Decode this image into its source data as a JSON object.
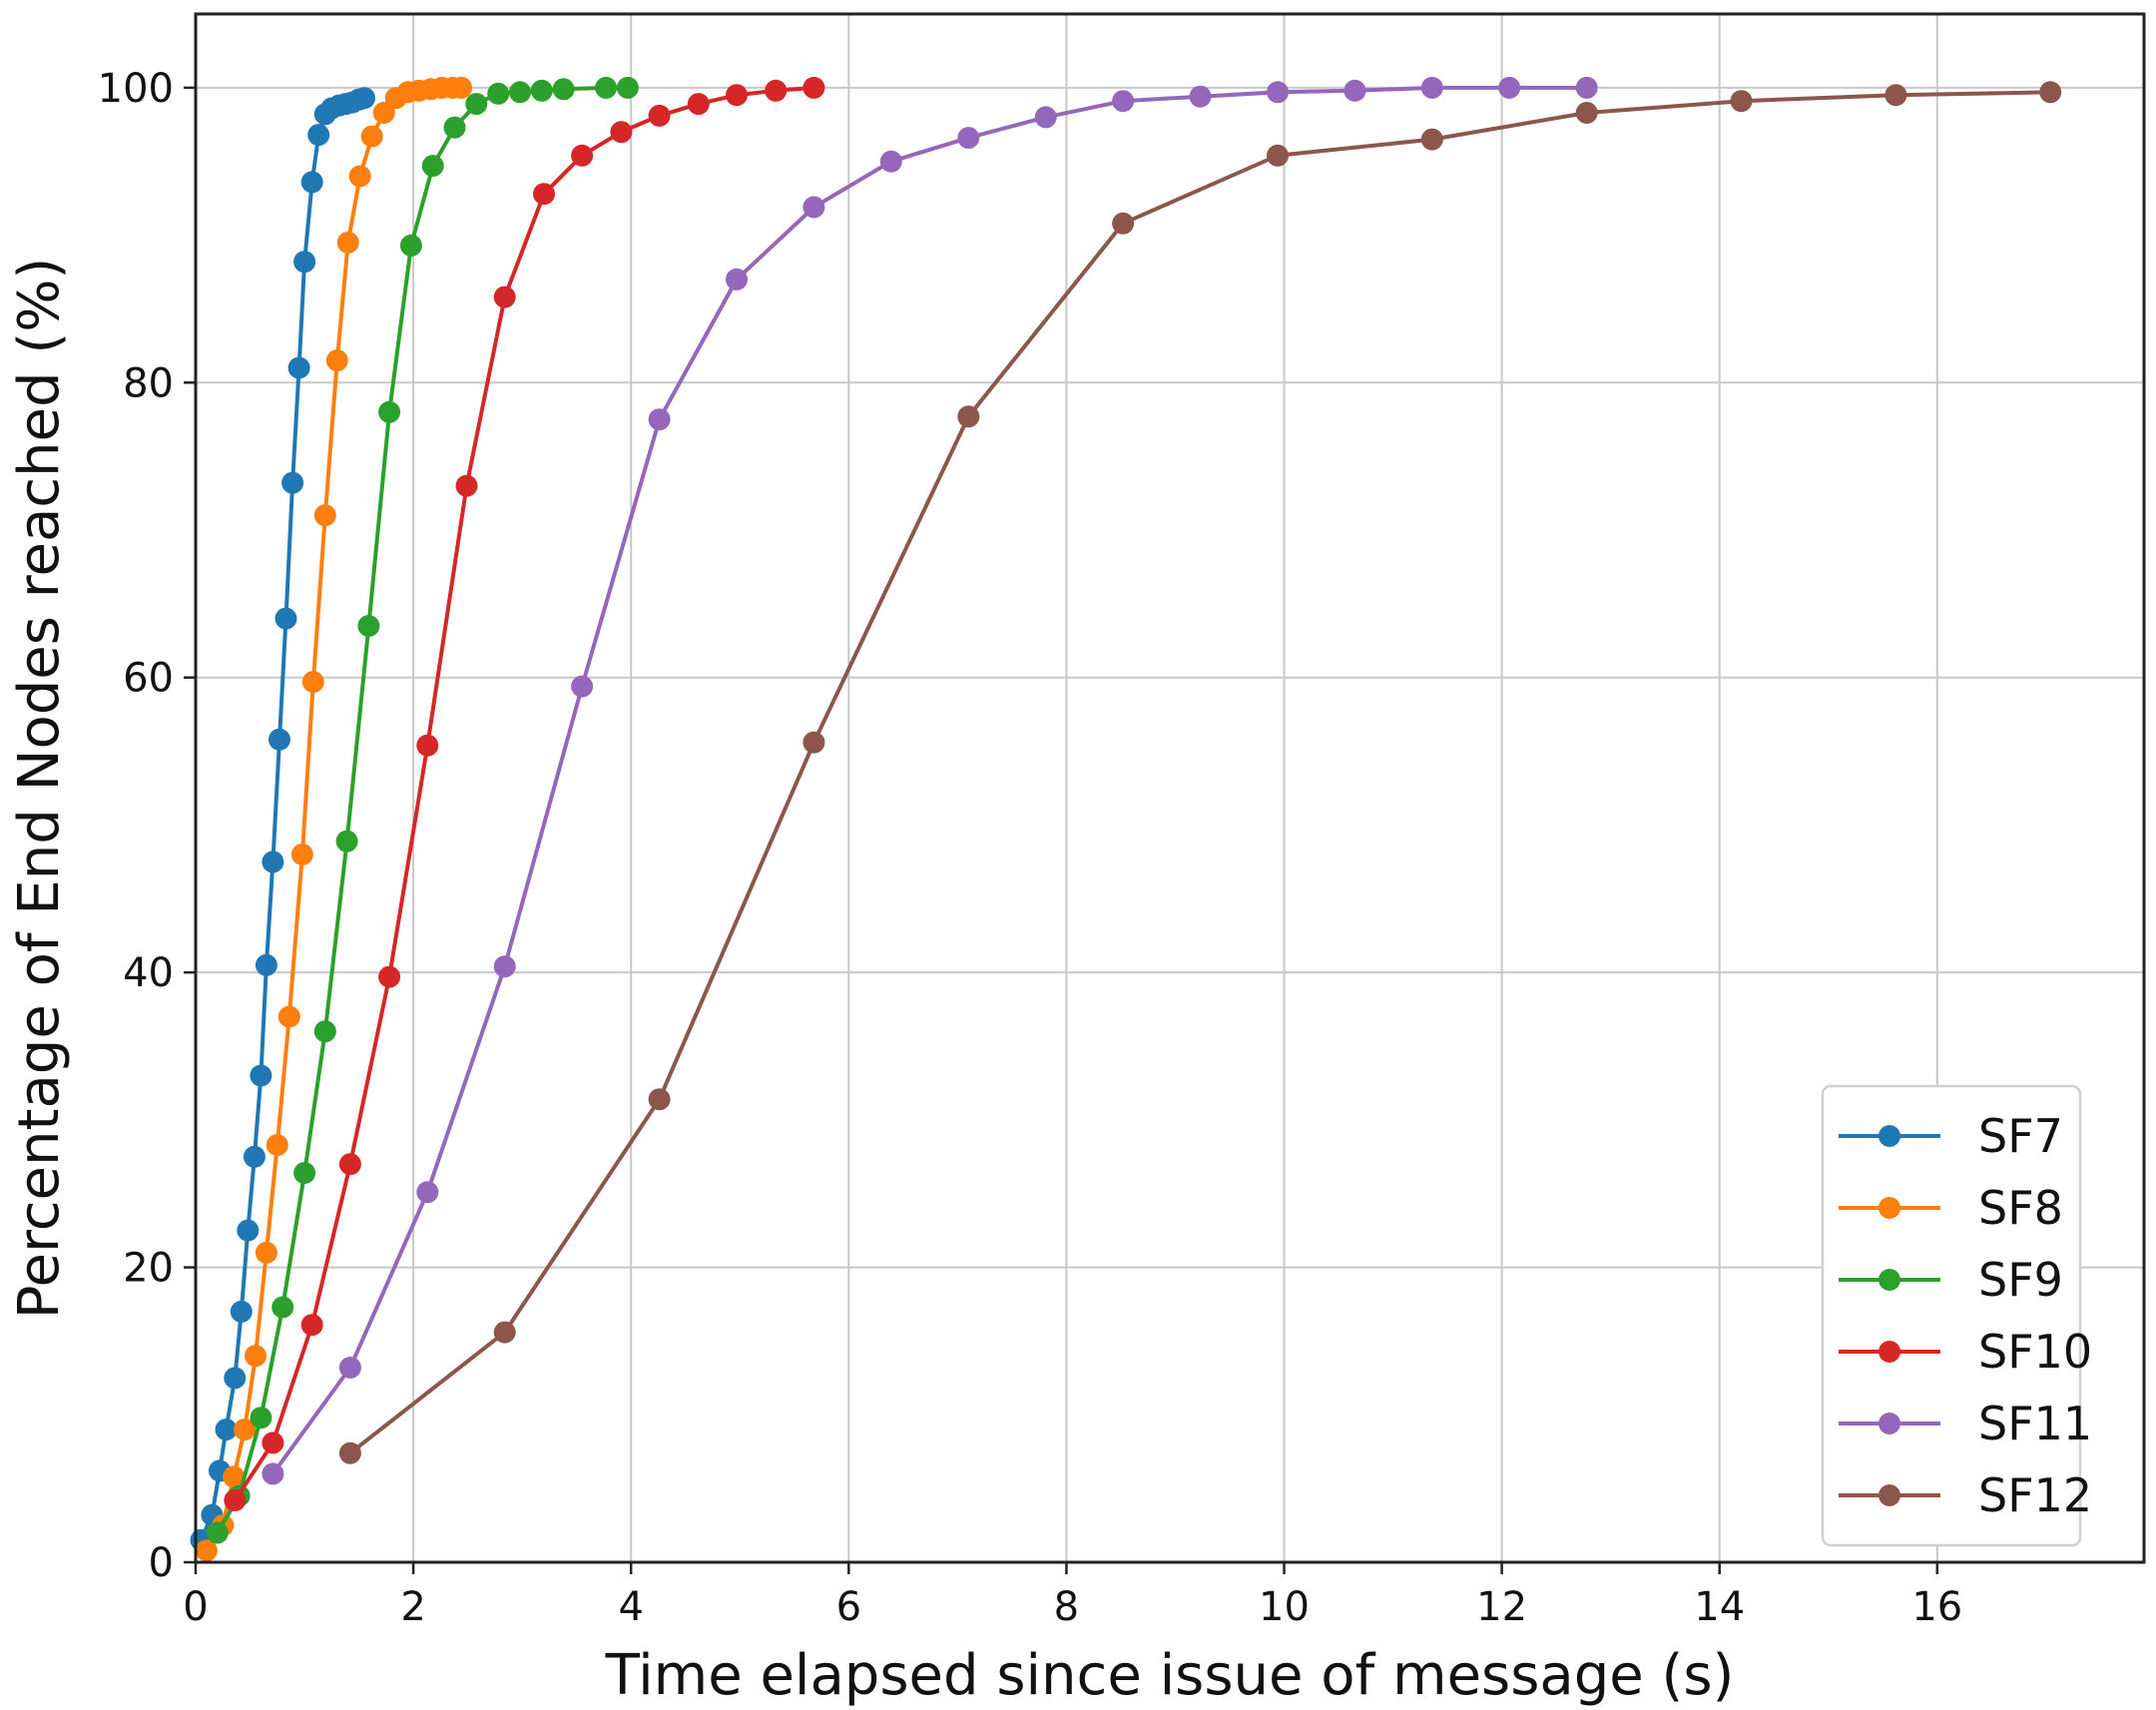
{
  "chart_data": {
    "type": "line",
    "title": "",
    "xlabel": "Time elapsed since issue of message (s)",
    "ylabel": "Percentage of End Nodes reached (%)",
    "xlim": [
      0,
      17.9
    ],
    "ylim": [
      0,
      105
    ],
    "xticks": [
      0,
      2,
      4,
      6,
      8,
      10,
      12,
      14,
      16
    ],
    "yticks": [
      0,
      20,
      40,
      60,
      80,
      100
    ],
    "grid": true,
    "legend_position": "lower-right",
    "marker": "circle",
    "series": [
      {
        "name": "SF7",
        "color": "#1f77b4",
        "x": [
          0.05,
          0.15,
          0.22,
          0.28,
          0.36,
          0.42,
          0.48,
          0.54,
          0.6,
          0.65,
          0.71,
          0.77,
          0.83,
          0.89,
          0.95,
          1.0,
          1.07,
          1.13,
          1.19,
          1.25,
          1.32,
          1.38,
          1.44,
          1.5,
          1.55
        ],
        "y": [
          1.5,
          3.2,
          6.2,
          9,
          12.5,
          17,
          22.5,
          27.5,
          33,
          40.5,
          47.5,
          55.8,
          64,
          73.2,
          81,
          88.2,
          93.6,
          96.8,
          98.2,
          98.6,
          98.8,
          98.9,
          99.0,
          99.2,
          99.3
        ]
      },
      {
        "name": "SF8",
        "color": "#ff7f0e",
        "x": [
          0.1,
          0.25,
          0.35,
          0.45,
          0.55,
          0.65,
          0.75,
          0.86,
          0.98,
          1.08,
          1.19,
          1.3,
          1.4,
          1.51,
          1.62,
          1.73,
          1.84,
          1.95,
          2.05,
          2.16,
          2.26,
          2.36,
          2.44
        ],
        "y": [
          0.8,
          2.5,
          5.8,
          9,
          14,
          21,
          28.3,
          37,
          48,
          59.7,
          71,
          81.5,
          89.5,
          94,
          96.7,
          98.3,
          99.3,
          99.7,
          99.8,
          99.9,
          100,
          100,
          100
        ]
      },
      {
        "name": "SF9",
        "color": "#2ca02c",
        "x": [
          0.2,
          0.4,
          0.6,
          0.8,
          1.0,
          1.19,
          1.39,
          1.59,
          1.78,
          1.98,
          2.18,
          2.38,
          2.58,
          2.78,
          2.98,
          3.18,
          3.38,
          3.77,
          3.97
        ],
        "y": [
          2,
          4.5,
          9.8,
          17.3,
          26.4,
          36,
          48.9,
          63.5,
          78,
          89.3,
          94.7,
          97.3,
          98.9,
          99.6,
          99.7,
          99.8,
          99.9,
          100,
          100
        ]
      },
      {
        "name": "SF10",
        "color": "#d62728",
        "x": [
          0.36,
          0.71,
          1.07,
          1.42,
          1.78,
          2.13,
          2.49,
          2.84,
          3.2,
          3.55,
          3.91,
          4.26,
          4.62,
          4.97,
          5.33,
          5.68
        ],
        "y": [
          4.2,
          8.1,
          16.1,
          27,
          39.7,
          55.4,
          73,
          85.8,
          92.8,
          95.4,
          97,
          98.1,
          98.9,
          99.5,
          99.8,
          100
        ]
      },
      {
        "name": "SF11",
        "color": "#9467bd",
        "x": [
          0.71,
          1.42,
          2.13,
          2.84,
          3.55,
          4.26,
          4.97,
          5.68,
          6.39,
          7.1,
          7.81,
          8.52,
          9.23,
          9.94,
          10.65,
          11.36,
          12.07,
          12.78
        ],
        "y": [
          6,
          13.2,
          25.1,
          40.4,
          59.4,
          77.5,
          87,
          91.9,
          95,
          96.6,
          98,
          99.1,
          99.4,
          99.7,
          99.8,
          100,
          100,
          100
        ]
      },
      {
        "name": "SF12",
        "color": "#8c564b",
        "x": [
          1.42,
          2.84,
          4.26,
          5.68,
          7.1,
          8.52,
          9.94,
          11.36,
          12.78,
          14.2,
          15.62,
          17.04
        ],
        "y": [
          7.4,
          15.6,
          31.4,
          55.6,
          77.7,
          90.8,
          95.4,
          96.5,
          98.3,
          99.1,
          99.5,
          99.7
        ]
      }
    ]
  }
}
